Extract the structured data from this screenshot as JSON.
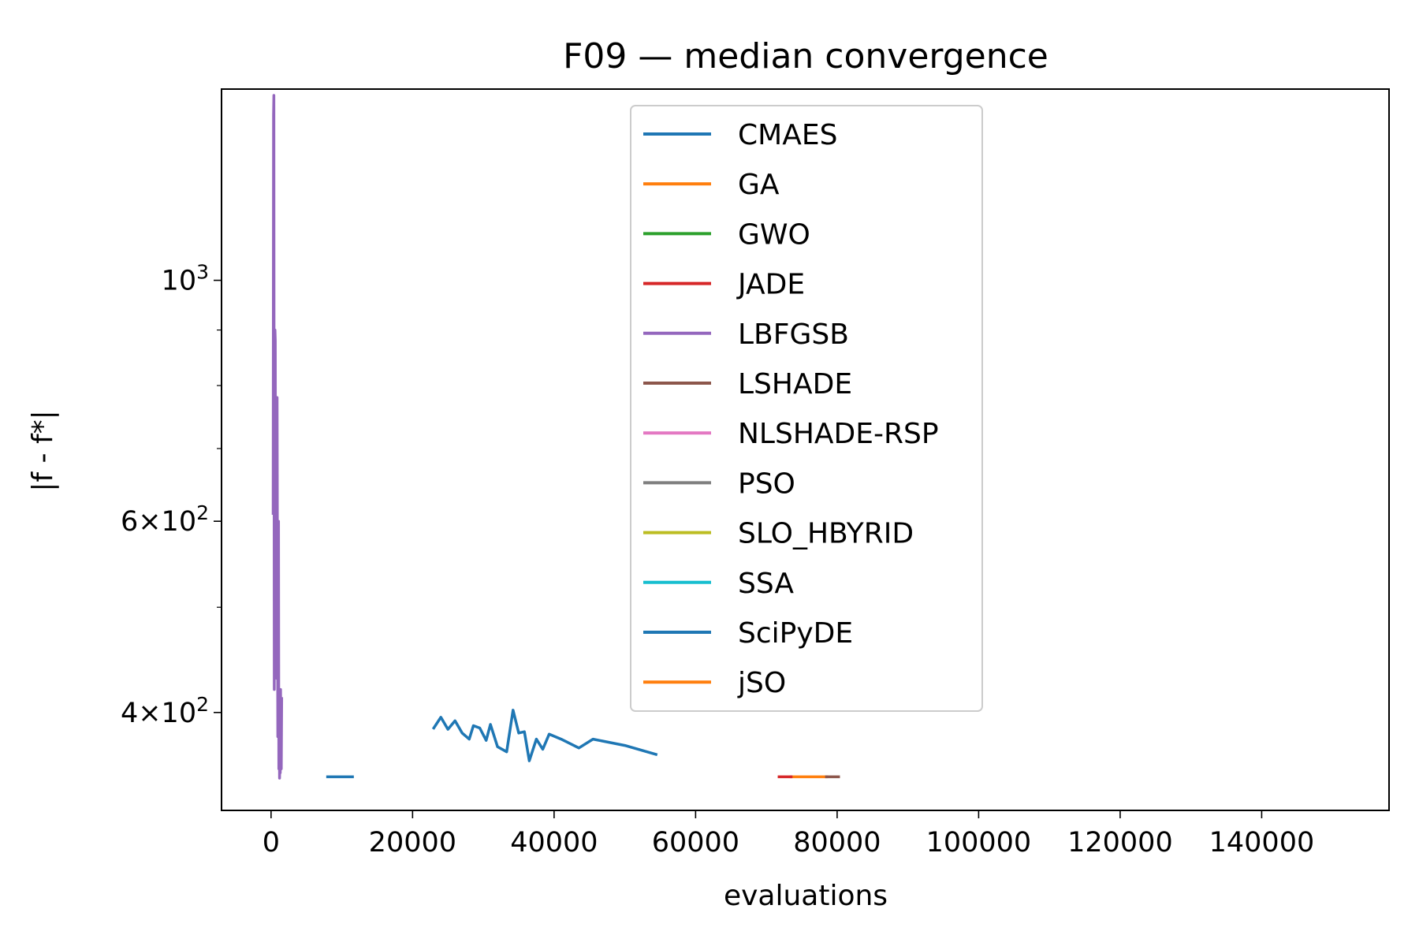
{
  "chart_data": {
    "type": "line",
    "title": "F09 — median convergence",
    "xlabel": "evaluations",
    "ylabel": "|f - f*|",
    "xscale": "linear",
    "yscale": "log",
    "xlim": [
      -7000,
      158000
    ],
    "ylim": [
      325,
      1500
    ],
    "x_ticks": [
      0,
      20000,
      40000,
      60000,
      80000,
      100000,
      120000,
      140000
    ],
    "x_tick_labels": [
      "0",
      "20000",
      "40000",
      "60000",
      "80000",
      "100000",
      "120000",
      "140000"
    ],
    "y_major_ticks": [
      {
        "value": 400,
        "mantissa": "4",
        "exponent": "2"
      },
      {
        "value": 600,
        "mantissa": "6",
        "exponent": "2"
      },
      {
        "value": 1000,
        "mantissa": "",
        "exponent": "3"
      }
    ],
    "y_minor_ticks": [
      500,
      700,
      800,
      900
    ],
    "grid": false,
    "legend_position": "top-center",
    "series": [
      {
        "name": "CMAES",
        "color": "#1f77b4",
        "x": [
          23000,
          24000,
          25000,
          26000,
          27000,
          28000,
          28600,
          29500,
          30400,
          31000,
          32000,
          33300,
          34200,
          35000,
          35800,
          36500,
          37500,
          38400,
          39300,
          41000,
          43500,
          45500,
          50000,
          54400
        ],
        "y": [
          387,
          396,
          386,
          393,
          383,
          378,
          389,
          387,
          377,
          390,
          372,
          368,
          402,
          383,
          384,
          361,
          378,
          370,
          382,
          378,
          371,
          378,
          373,
          366
        ]
      },
      {
        "name": "GA",
        "color": "#ff7f0e",
        "x": [
          73500,
          78500
        ],
        "y": [
          349,
          349
        ]
      },
      {
        "name": "GWO",
        "color": "#2ca02c",
        "x": [],
        "y": []
      },
      {
        "name": "JADE",
        "color": "#d62728",
        "x": [
          71800,
          73500
        ],
        "y": [
          349,
          349
        ]
      },
      {
        "name": "LBFGSB",
        "color": "#9467bd",
        "x": [
          300,
          350,
          400,
          450,
          500,
          550,
          600,
          650,
          700,
          750,
          800,
          850,
          900,
          950,
          1000,
          1050,
          1100,
          1150,
          1200,
          1250,
          1300,
          1350,
          1400,
          1450,
          1500
        ],
        "y": [
          610,
          1420,
          1480,
          420,
          810,
          900,
          880,
          520,
          480,
          600,
          430,
          780,
          560,
          380,
          470,
          600,
          355,
          410,
          348,
          360,
          352,
          420,
          365,
          355,
          412
        ]
      },
      {
        "name": "LSHADE",
        "color": "#8c564b",
        "x": [
          78500,
          80200
        ],
        "y": [
          349,
          349
        ]
      },
      {
        "name": "NLSHADE-RSP",
        "color": "#e377c2",
        "x": [],
        "y": []
      },
      {
        "name": "PSO",
        "color": "#7f7f7f",
        "x": [],
        "y": []
      },
      {
        "name": "SLO_HBYRID",
        "color": "#bcbd22",
        "x": [],
        "y": []
      },
      {
        "name": "SSA",
        "color": "#17becf",
        "x": [],
        "y": []
      },
      {
        "name": "SciPyDE",
        "color": "#1f77b4",
        "x": [
          8000,
          11500
        ],
        "y": [
          349,
          349
        ]
      },
      {
        "name": "jSO",
        "color": "#ff7f0e",
        "x": [],
        "y": []
      }
    ]
  }
}
